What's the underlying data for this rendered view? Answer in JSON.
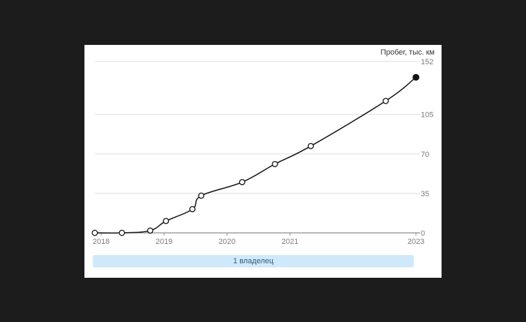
{
  "chart_data": {
    "type": "line",
    "ylabel": "Пробег, тыс. км",
    "y_ticks": [
      0,
      35,
      70,
      105,
      152
    ],
    "ylim": [
      0,
      152
    ],
    "x_tick_labels": [
      "2018",
      "2019",
      "2020",
      "2021",
      "2023"
    ],
    "x_ticks": [
      2018.0,
      2019.0,
      2020.0,
      2021.0,
      2023.0
    ],
    "xlim": [
      2017.9,
      2023.0
    ],
    "grid": true,
    "series": [
      {
        "x": [
          2017.9,
          2018.33,
          2018.78,
          2019.03,
          2019.45,
          2019.59,
          2020.24,
          2020.76,
          2021.33,
          2022.52,
          2023.0
        ],
        "y": [
          0,
          0,
          2,
          10.5,
          21,
          33,
          45,
          61,
          77,
          117,
          138
        ]
      }
    ],
    "marker_colors": {
      "open": "#ffffff",
      "last": "#111111"
    },
    "line_color": "#1a1a1a",
    "grid_color": "#dddddd"
  },
  "owners": {
    "label": "1 владелец"
  }
}
